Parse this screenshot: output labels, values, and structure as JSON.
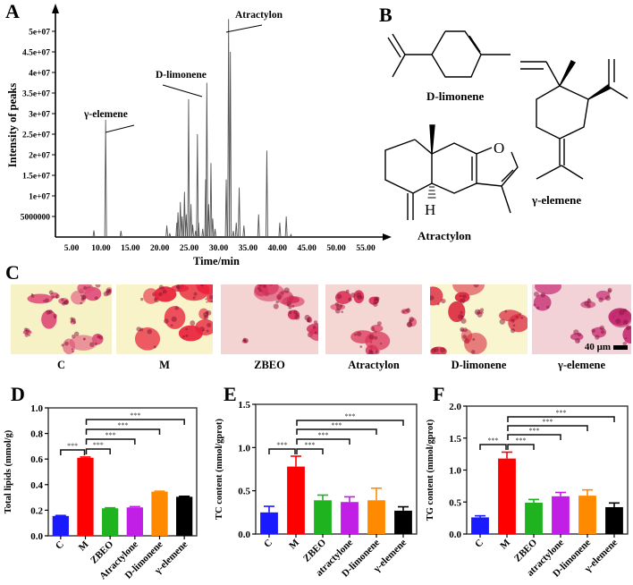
{
  "panels": {
    "a": {
      "label": "A"
    },
    "b": {
      "label": "B"
    },
    "c": {
      "label": "C"
    },
    "d": {
      "label": "D"
    },
    "e": {
      "label": "E"
    },
    "f": {
      "label": "F"
    }
  },
  "chart_data": [
    {
      "panel": "A",
      "type": "line",
      "title": "",
      "xlabel": "Time/min",
      "ylabel": "Intensity of peaks",
      "xlim": [
        2,
        58
      ],
      "ylim": [
        0,
        55000000
      ],
      "x_ticks": [
        "5.00",
        "10.00",
        "15.00",
        "20.00",
        "25.00",
        "30.00",
        "35.00",
        "40.00",
        "45.00",
        "50.00",
        "55.00"
      ],
      "y_ticks": [
        "5000000",
        "1e+07",
        "1.5e+07",
        "2e+07",
        "2.5e+07",
        "3e+07",
        "3.5e+07",
        "4e+07",
        "4.5e+07",
        "5e+07"
      ],
      "y_tick_values": [
        5000000,
        10000000,
        15000000,
        20000000,
        25000000,
        30000000,
        35000000,
        40000000,
        45000000,
        50000000
      ],
      "annotations": [
        {
          "text": "γ-elemene",
          "x": 10.8,
          "y": 28500000
        },
        {
          "text": "D-limonene",
          "x": 28.0,
          "y": 37500000
        },
        {
          "text": "Atractylon",
          "x": 31.7,
          "y": 53000000
        }
      ],
      "peaks": [
        {
          "x": 8.8,
          "y": 1600000
        },
        {
          "x": 10.8,
          "y": 28500000
        },
        {
          "x": 13.4,
          "y": 1500000
        },
        {
          "x": 21.2,
          "y": 2800000
        },
        {
          "x": 21.7,
          "y": 900000
        },
        {
          "x": 22.9,
          "y": 3500000
        },
        {
          "x": 23.1,
          "y": 6000000
        },
        {
          "x": 23.5,
          "y": 8500000
        },
        {
          "x": 23.8,
          "y": 5000000
        },
        {
          "x": 24.2,
          "y": 11000000
        },
        {
          "x": 24.5,
          "y": 5500000
        },
        {
          "x": 24.9,
          "y": 33500000
        },
        {
          "x": 25.3,
          "y": 8000000
        },
        {
          "x": 25.6,
          "y": 3000000
        },
        {
          "x": 26.1,
          "y": 1500000
        },
        {
          "x": 26.4,
          "y": 25000000
        },
        {
          "x": 26.6,
          "y": 3500000
        },
        {
          "x": 27.3,
          "y": 2000000
        },
        {
          "x": 27.8,
          "y": 14000000
        },
        {
          "x": 28.0,
          "y": 37500000
        },
        {
          "x": 28.3,
          "y": 8000000
        },
        {
          "x": 28.7,
          "y": 18000000
        },
        {
          "x": 29.0,
          "y": 4500000
        },
        {
          "x": 29.4,
          "y": 2000000
        },
        {
          "x": 31.3,
          "y": 14000000
        },
        {
          "x": 31.7,
          "y": 53000000
        },
        {
          "x": 32.0,
          "y": 45000000
        },
        {
          "x": 32.5,
          "y": 1500000
        },
        {
          "x": 33.0,
          "y": 3500000
        },
        {
          "x": 33.5,
          "y": 12000000
        },
        {
          "x": 34.3,
          "y": 2800000
        },
        {
          "x": 36.8,
          "y": 5500000
        },
        {
          "x": 38.2,
          "y": 21000000
        },
        {
          "x": 40.4,
          "y": 3500000
        },
        {
          "x": 41.5,
          "y": 5000000
        },
        {
          "x": 42.3,
          "y": 600000
        }
      ]
    },
    {
      "panel": "D",
      "type": "bar",
      "title": "",
      "xlabel": "",
      "ylabel": "Total lipids (mmol/g)",
      "ylim": [
        0,
        1.0
      ],
      "y_ticks": [
        "0.0",
        "0.2",
        "0.4",
        "0.6",
        "0.8",
        "1.0"
      ],
      "categories": [
        "C",
        "M",
        "ZBEO",
        "Atractylone",
        "D-limonene",
        "γ-elemene"
      ],
      "values": [
        0.155,
        0.61,
        0.215,
        0.222,
        0.345,
        0.305
      ],
      "errors": [
        0.004,
        0.006,
        0.004,
        0.006,
        0.004,
        0.004
      ],
      "colors": [
        "#1a1aff",
        "#ff0000",
        "#1fb31f",
        "#c21fe6",
        "#ff8a00",
        "#000000"
      ],
      "significance": [
        {
          "from": "C",
          "to": "M",
          "label": "***"
        },
        {
          "from": "M",
          "to": "ZBEO",
          "label": "***"
        },
        {
          "from": "M",
          "to": "Atractylone",
          "label": "***"
        },
        {
          "from": "M",
          "to": "D-limonene",
          "label": "***"
        },
        {
          "from": "M",
          "to": "γ-elemene",
          "label": "***"
        }
      ]
    },
    {
      "panel": "E",
      "type": "bar",
      "title": "",
      "xlabel": "",
      "ylabel": "TC content (mmol/gprot)",
      "ylim": [
        0,
        1.5
      ],
      "y_ticks": [
        "0.0",
        "0.5",
        "1.0",
        "1.5"
      ],
      "categories": [
        "C",
        "M",
        "ZBEO",
        "atractylone",
        "D-limonene",
        "γ-elemene"
      ],
      "values": [
        0.25,
        0.78,
        0.39,
        0.37,
        0.39,
        0.27
      ],
      "errors": [
        0.07,
        0.12,
        0.06,
        0.06,
        0.14,
        0.045
      ],
      "colors": [
        "#1a1aff",
        "#ff0000",
        "#1fb31f",
        "#c21fe6",
        "#ff8a00",
        "#000000"
      ],
      "significance": [
        {
          "from": "C",
          "to": "M",
          "label": "***"
        },
        {
          "from": "M",
          "to": "ZBEO",
          "label": "***"
        },
        {
          "from": "M",
          "to": "atractylone",
          "label": "***"
        },
        {
          "from": "M",
          "to": "D-limonene",
          "label": "***"
        },
        {
          "from": "M",
          "to": "γ-elemene",
          "label": "***"
        }
      ]
    },
    {
      "panel": "F",
      "type": "bar",
      "title": "",
      "xlabel": "",
      "ylabel": "TG content (mmol/gprot)",
      "ylim": [
        0,
        2.0
      ],
      "y_ticks": [
        "0.0",
        "0.5",
        "1.0",
        "1.5",
        "2.0"
      ],
      "categories": [
        "C",
        "M",
        "ZBEO",
        "atractylone",
        "D-limonene",
        "γ-elemene"
      ],
      "values": [
        0.26,
        1.18,
        0.49,
        0.59,
        0.6,
        0.42
      ],
      "errors": [
        0.025,
        0.1,
        0.05,
        0.06,
        0.09,
        0.065
      ],
      "colors": [
        "#1a1aff",
        "#ff0000",
        "#1fb31f",
        "#c21fe6",
        "#ff8a00",
        "#000000"
      ],
      "significance": [
        {
          "from": "C",
          "to": "M",
          "label": "***"
        },
        {
          "from": "M",
          "to": "ZBEO",
          "label": "***"
        },
        {
          "from": "M",
          "to": "atractylone",
          "label": "***"
        },
        {
          "from": "M",
          "to": "D-limonene",
          "label": "***"
        },
        {
          "from": "M",
          "to": "γ-elemene",
          "label": "***"
        }
      ]
    }
  ],
  "structures": [
    {
      "name": "D-limonene"
    },
    {
      "name": "γ-elemene"
    },
    {
      "name": "Atractylon",
      "atom_labels": [
        "O",
        "H"
      ]
    }
  ],
  "micrographs": {
    "tiles": [
      {
        "label": "C",
        "bg": "#f7f2c6",
        "stain": "#e0507a"
      },
      {
        "label": "M",
        "bg": "#f8f3c8",
        "stain": "#e8203a"
      },
      {
        "label": "ZBEO",
        "bg": "#f3d4d2",
        "stain": "#d6305a"
      },
      {
        "label": "Atractylon",
        "bg": "#f4d6d2",
        "stain": "#dc3358"
      },
      {
        "label": "D-limonene",
        "bg": "#f8f5cf",
        "stain": "#dc2a40"
      },
      {
        "label": "γ-elemene",
        "bg": "#f2d2d6",
        "stain": "#c42870"
      }
    ],
    "scale_bar": "40 μm"
  }
}
